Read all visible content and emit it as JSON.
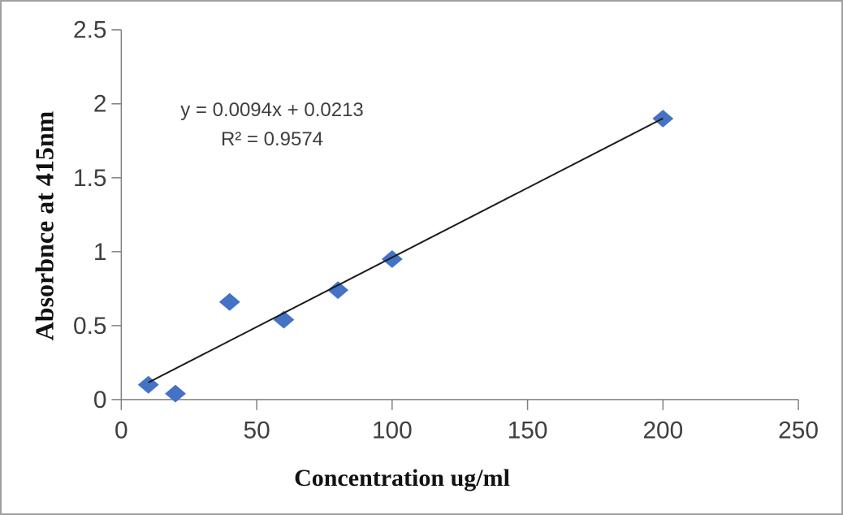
{
  "chart_data": {
    "type": "scatter",
    "title": "",
    "xlabel": "Concentration ug/ml",
    "ylabel": "Absorbnce at 415nm",
    "xlim": [
      0,
      250
    ],
    "ylim": [
      0,
      2.5
    ],
    "x_ticks": [
      0,
      50,
      100,
      150,
      200,
      250
    ],
    "y_ticks": [
      0,
      0.5,
      1,
      1.5,
      2,
      2.5
    ],
    "x_tick_labels": [
      "0",
      "50",
      "100",
      "150",
      "200",
      "250"
    ],
    "y_tick_labels": [
      "0",
      "0.5",
      "1",
      "1.5",
      "2",
      "2.5"
    ],
    "points": [
      [
        10,
        0.1
      ],
      [
        20,
        0.04
      ],
      [
        40,
        0.66
      ],
      [
        60,
        0.54
      ],
      [
        80,
        0.74
      ],
      [
        100,
        0.95
      ],
      [
        200,
        1.9
      ]
    ],
    "trendline": {
      "slope": 0.0094,
      "intercept": 0.0213,
      "x_start": 10,
      "x_end": 200
    },
    "annotation": {
      "equation": "y = 0.0094x + 0.0213",
      "r_squared": "R² = 0.9574"
    },
    "style": {
      "marker_shape": "diamond",
      "marker_color": "#4472C4",
      "trendline_color": "#1a1a1a",
      "axis_color": "#808080",
      "tick_label_color": "#3f3f3f",
      "annotation_color": "#3f3f3f",
      "frame_border_color": "#a0a0a0",
      "grid": false,
      "legend": false
    }
  }
}
